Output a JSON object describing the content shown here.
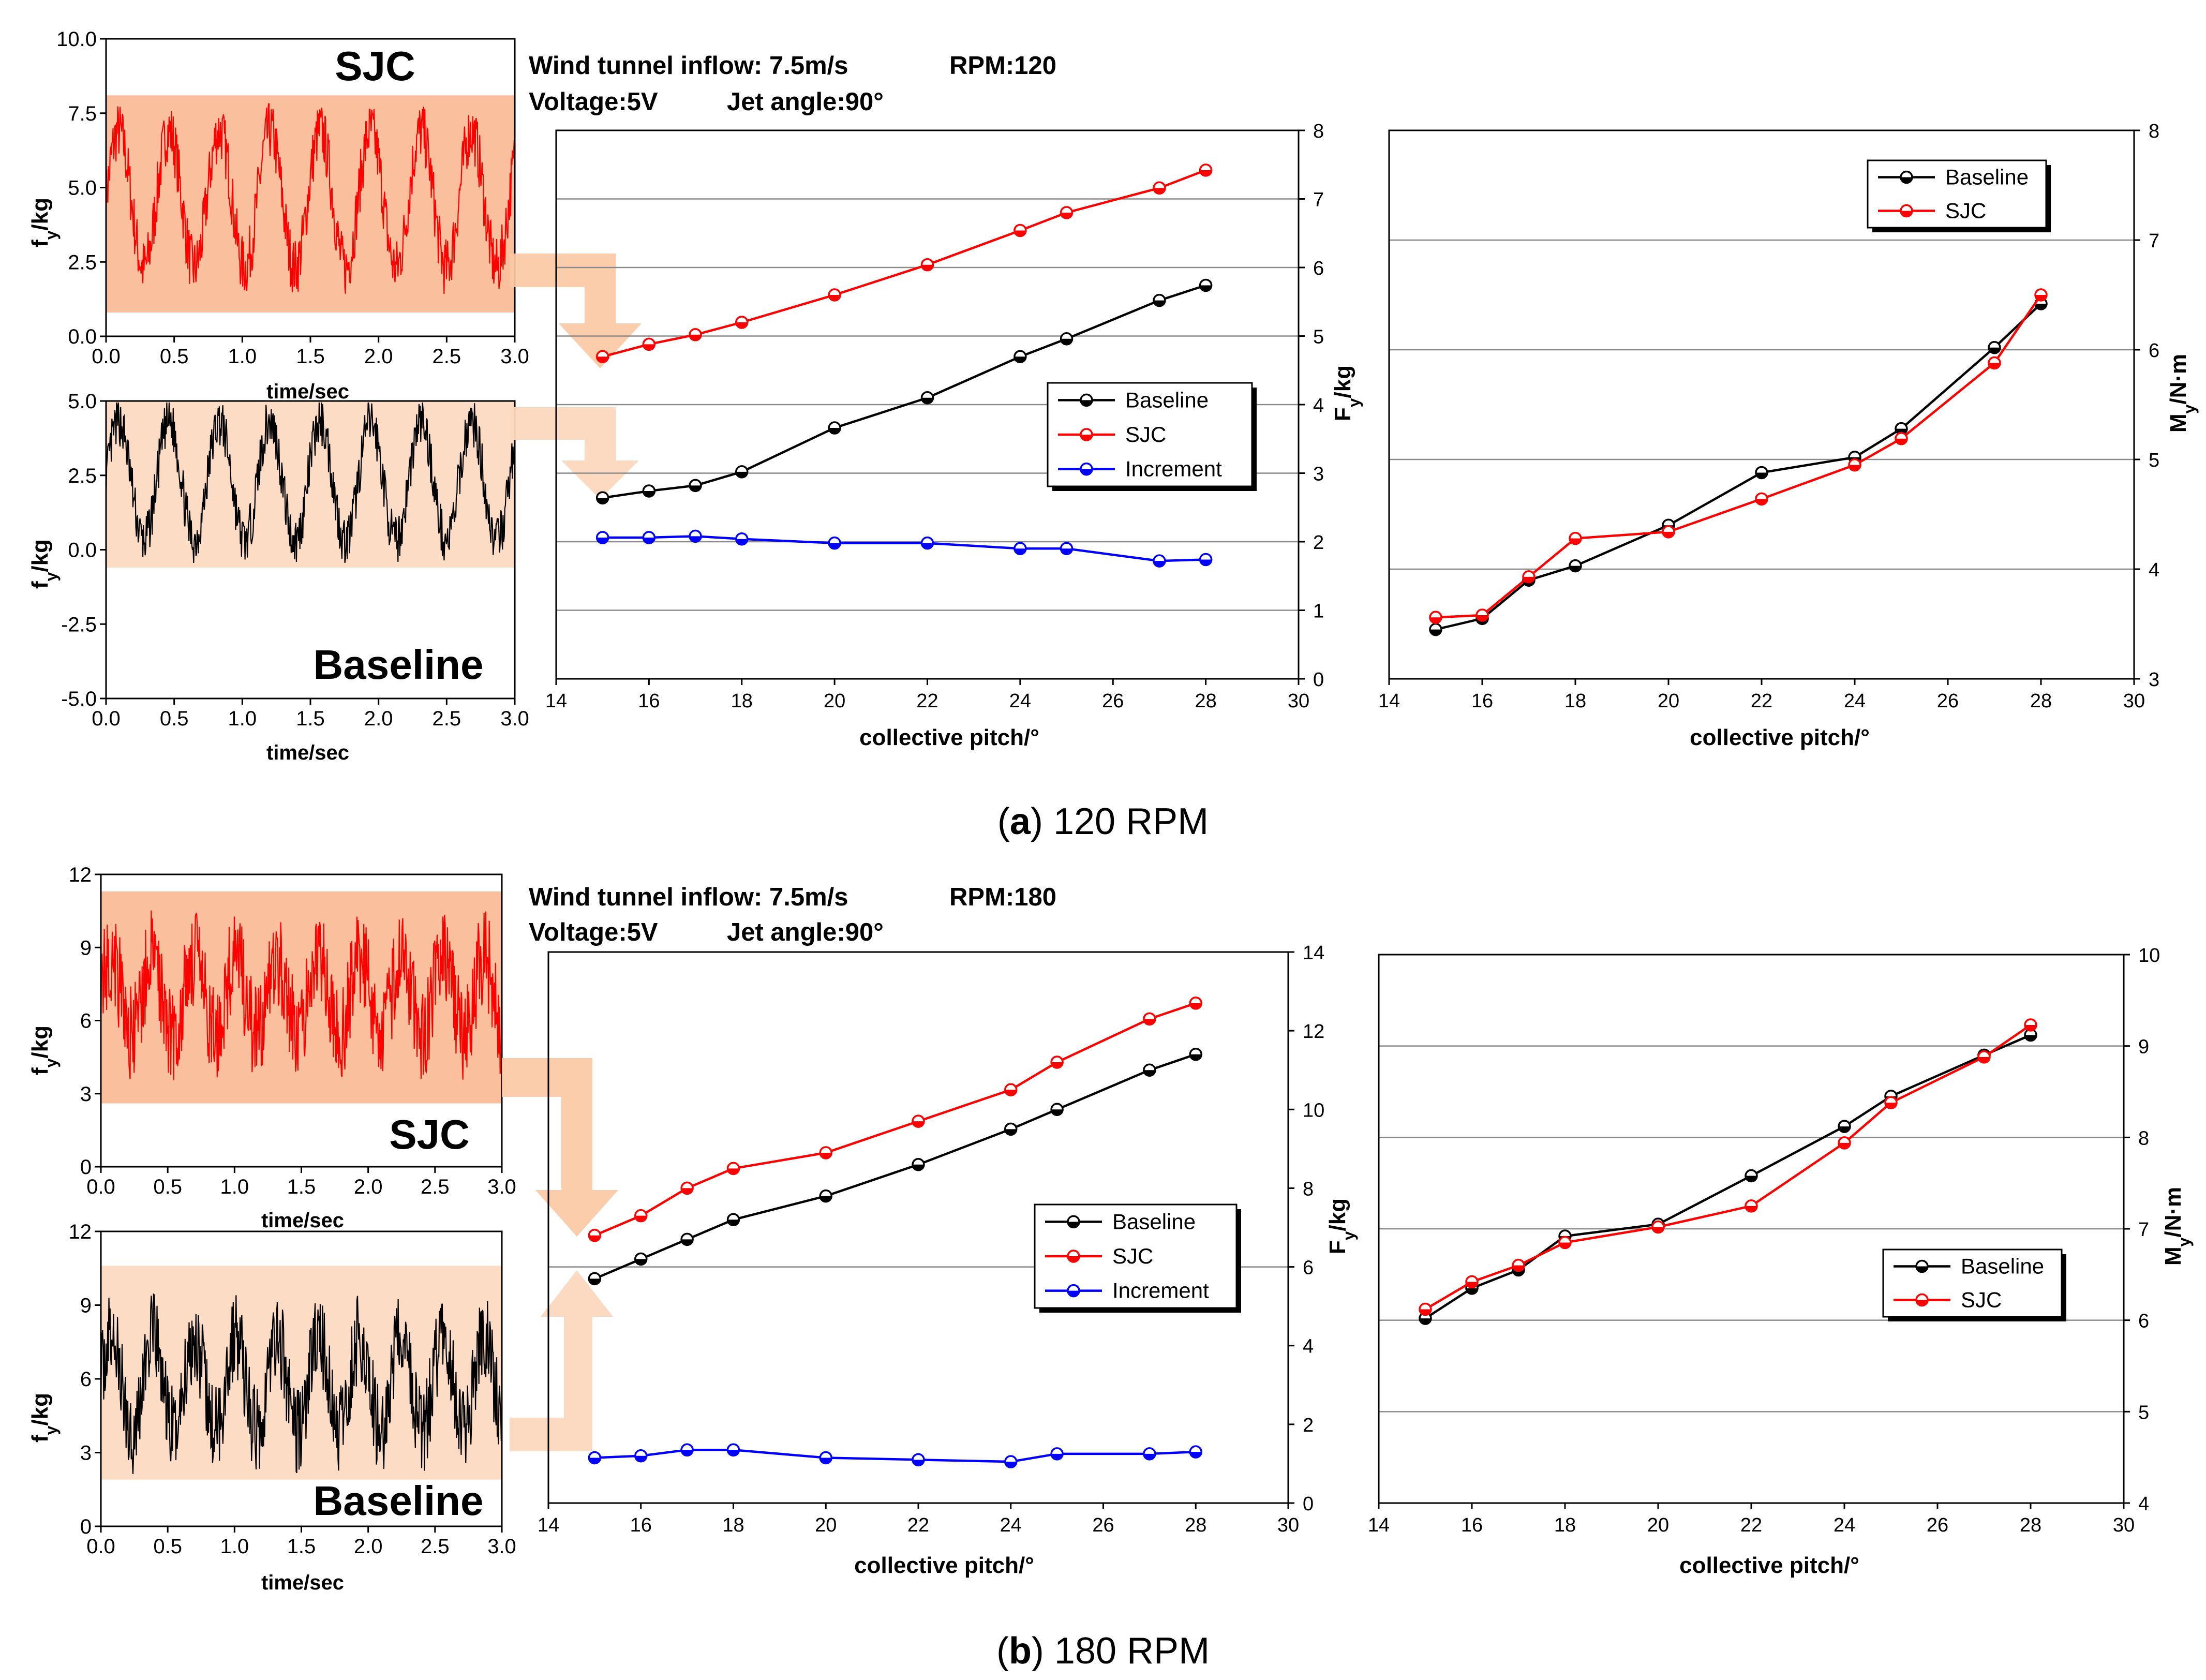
{
  "colors": {
    "baseline": "#000000",
    "sjc": "#ff0000",
    "increment": "#0000ff",
    "band_sjc": "#f9b58c",
    "band_base": "#fcd8bf",
    "arrow": "#fbc9a4"
  },
  "captions": {
    "a_letter": "a",
    "a_rest": " 120 RPM",
    "b_letter": "b",
    "b_rest": " 180 RPM"
  },
  "chart_data": [
    {
      "id": "a-ts-sjc",
      "type": "line",
      "series_name": "SJC",
      "label": "SJC",
      "xlim": [
        0,
        3
      ],
      "ylim": [
        0,
        10
      ],
      "xticks": [
        "0.0",
        "0.5",
        "1.0",
        "1.5",
        "2.0",
        "2.5",
        "3.0"
      ],
      "yticks": [
        "0.0",
        "2.5",
        "5.0",
        "7.5",
        "10.0"
      ],
      "xlabel": "time/sec",
      "ylabel_main": "f",
      "ylabel_sub": "y",
      "ylabel_tail": "/kg",
      "signal": {
        "mean": 4.6,
        "amp": 2.3,
        "period": 0.37,
        "noise": 1.0,
        "band": [
          0.8,
          8.1
        ],
        "seed": 7
      }
    },
    {
      "id": "a-ts-base",
      "type": "line",
      "series_name": "Baseline",
      "label": "Baseline",
      "xlim": [
        0,
        3
      ],
      "ylim": [
        -5,
        5
      ],
      "xticks": [
        "0.0",
        "0.5",
        "1.0",
        "1.5",
        "2.0",
        "2.5",
        "3.0"
      ],
      "yticks": [
        "-5.0",
        "-2.5",
        "0.0",
        "2.5",
        "5.0"
      ],
      "xlabel": "time/sec",
      "ylabel_main": "f",
      "ylabel_sub": "y",
      "ylabel_tail": "/kg",
      "signal": {
        "mean": 2.3,
        "amp": 2.0,
        "period": 0.37,
        "noise": 0.8,
        "band": [
          -0.6,
          5.0
        ],
        "seed": 13
      }
    },
    {
      "id": "a-fy",
      "type": "line",
      "header_line1": "Wind tunnel inflow: 7.5m/s",
      "header_rpm": "RPM:120",
      "header_voltage": "Voltage:5V",
      "header_jet": "Jet angle:90°",
      "xlabel": "collective pitch/°",
      "ylabel_main": "F",
      "ylabel_sub": "y",
      "ylabel_tail": "/kg",
      "xlim": [
        14,
        30
      ],
      "ylim": [
        0,
        8
      ],
      "xticks": [
        "14",
        "16",
        "18",
        "20",
        "22",
        "24",
        "26",
        "28",
        "30"
      ],
      "yticks": [
        "0",
        "1",
        "2",
        "3",
        "4",
        "5",
        "6",
        "7",
        "8"
      ],
      "gridlines": [
        1,
        2,
        3,
        4,
        5,
        6,
        7
      ],
      "x": [
        15,
        16,
        17,
        18,
        20,
        22,
        24,
        25,
        27,
        28
      ],
      "series": [
        {
          "name": "Baseline",
          "values": [
            2.64,
            2.74,
            2.82,
            3.02,
            3.66,
            4.1,
            4.7,
            4.96,
            5.52,
            5.74
          ]
        },
        {
          "name": "SJC",
          "values": [
            4.7,
            4.88,
            5.02,
            5.2,
            5.6,
            6.04,
            6.54,
            6.8,
            7.16,
            7.42
          ]
        },
        {
          "name": "Increment",
          "values": [
            2.06,
            2.06,
            2.08,
            2.04,
            1.98,
            1.98,
            1.9,
            1.9,
            1.72,
            1.74
          ]
        }
      ],
      "legend": [
        "Baseline",
        "SJC",
        "Increment"
      ],
      "legend_position": "center-right"
    },
    {
      "id": "a-my",
      "type": "line",
      "xlabel": "collective pitch/°",
      "ylabel_main": "M",
      "ylabel_sub": "y",
      "ylabel_tail": "/N·m",
      "xlim": [
        14,
        30
      ],
      "ylim": [
        3,
        8
      ],
      "xticks": [
        "14",
        "16",
        "18",
        "20",
        "22",
        "24",
        "26",
        "28",
        "30"
      ],
      "yticks": [
        "3",
        "4",
        "5",
        "6",
        "7",
        "8"
      ],
      "gridlines": [
        4,
        5,
        6,
        7
      ],
      "x": [
        15,
        16,
        17,
        18,
        20,
        22,
        24,
        25,
        27,
        28
      ],
      "series": [
        {
          "name": "Baseline",
          "values": [
            3.45,
            3.55,
            3.9,
            4.03,
            4.4,
            4.88,
            5.02,
            5.28,
            6.02,
            6.42
          ]
        },
        {
          "name": "SJC",
          "values": [
            3.56,
            3.58,
            3.93,
            4.28,
            4.34,
            4.64,
            4.95,
            5.19,
            5.88,
            6.5
          ]
        }
      ],
      "legend": [
        "Baseline",
        "SJC"
      ],
      "legend_position": "top-right"
    },
    {
      "id": "b-ts-sjc",
      "type": "line",
      "series_name": "SJC",
      "label": "SJC",
      "xlim": [
        0,
        3
      ],
      "ylim": [
        0,
        12
      ],
      "xticks": [
        "0.0",
        "0.5",
        "1.0",
        "1.5",
        "2.0",
        "2.5",
        "3.0"
      ],
      "yticks": [
        "0",
        "3",
        "6",
        "9",
        "12"
      ],
      "xlabel": "time/sec",
      "ylabel_main": "f",
      "ylabel_sub": "y",
      "ylabel_tail": "/kg",
      "signal": {
        "mean": 7.0,
        "amp": 1.6,
        "period": 0.31,
        "noise": 2.0,
        "band": [
          2.6,
          11.3
        ],
        "seed": 21
      }
    },
    {
      "id": "b-ts-base",
      "type": "line",
      "series_name": "Baseline",
      "label": "Baseline",
      "xlim": [
        0,
        3
      ],
      "ylim": [
        0,
        12
      ],
      "xticks": [
        "0.0",
        "0.5",
        "1.0",
        "1.5",
        "2.0",
        "2.5",
        "3.0"
      ],
      "yticks": [
        "0",
        "3",
        "6",
        "9",
        "12"
      ],
      "xlabel": "time/sec",
      "ylabel_main": "f",
      "ylabel_sub": "y",
      "ylabel_tail": "/kg",
      "signal": {
        "mean": 5.8,
        "amp": 1.9,
        "period": 0.31,
        "noise": 1.8,
        "band": [
          1.9,
          10.6
        ],
        "seed": 37
      }
    },
    {
      "id": "b-fy",
      "type": "line",
      "header_line1": "Wind tunnel inflow: 7.5m/s",
      "header_rpm": "RPM:180",
      "header_voltage": "Voltage:5V",
      "header_jet": "Jet angle:90°",
      "xlabel": "collective pitch/°",
      "ylabel_main": "F",
      "ylabel_sub": "y",
      "ylabel_tail": "/kg",
      "xlim": [
        14,
        30
      ],
      "ylim": [
        0,
        14
      ],
      "xticks": [
        "14",
        "16",
        "18",
        "20",
        "22",
        "24",
        "26",
        "28",
        "30"
      ],
      "yticks": [
        "0",
        "2",
        "4",
        "6",
        "8",
        "10",
        "12",
        "14"
      ],
      "gridlines": [
        6
      ],
      "x": [
        15,
        16,
        17,
        18,
        20,
        22,
        24,
        25,
        27,
        28
      ],
      "series": [
        {
          "name": "Baseline",
          "values": [
            5.7,
            6.2,
            6.7,
            7.2,
            7.8,
            8.6,
            9.5,
            10.0,
            11.0,
            11.4
          ]
        },
        {
          "name": "SJC",
          "values": [
            6.8,
            7.3,
            8.0,
            8.5,
            8.9,
            9.7,
            10.5,
            11.2,
            12.3,
            12.7
          ]
        },
        {
          "name": "Increment",
          "values": [
            1.15,
            1.2,
            1.35,
            1.35,
            1.15,
            1.1,
            1.05,
            1.25,
            1.25,
            1.3
          ]
        }
      ],
      "legend": [
        "Baseline",
        "SJC",
        "Increment"
      ],
      "legend_position": "center-right"
    },
    {
      "id": "b-my",
      "type": "line",
      "xlabel": "collective pitch/°",
      "ylabel_main": "M",
      "ylabel_sub": "y",
      "ylabel_tail": "/N·m",
      "xlim": [
        14,
        30
      ],
      "ylim": [
        4,
        10
      ],
      "xticks": [
        "14",
        "16",
        "18",
        "20",
        "22",
        "24",
        "26",
        "28",
        "30"
      ],
      "yticks": [
        "4",
        "5",
        "6",
        "7",
        "8",
        "9",
        "10"
      ],
      "gridlines": [
        5,
        6,
        7,
        8,
        9
      ],
      "x": [
        15,
        16,
        17,
        18,
        20,
        22,
        24,
        25,
        27,
        28
      ],
      "series": [
        {
          "name": "Baseline",
          "values": [
            6.02,
            6.35,
            6.55,
            6.92,
            7.05,
            7.58,
            8.12,
            8.45,
            8.9,
            9.12
          ]
        },
        {
          "name": "SJC",
          "values": [
            6.12,
            6.42,
            6.6,
            6.85,
            7.02,
            7.25,
            7.94,
            8.38,
            8.88,
            9.23
          ]
        }
      ],
      "legend": [
        "Baseline",
        "SJC"
      ],
      "legend_position": "bottom-right"
    }
  ]
}
